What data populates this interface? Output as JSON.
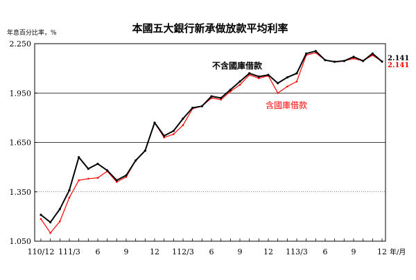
{
  "chart_data": {
    "type": "line",
    "title": "本國五大銀行新承做放款平均利率",
    "ylabel": "年息百分比率，%",
    "xlabel": "年/月",
    "ylim": [
      1.05,
      2.25
    ],
    "yticks": [
      "1.050",
      "1.350",
      "1.650",
      "1.950",
      "2.250"
    ],
    "ytick_values": [
      1.05,
      1.35,
      1.65,
      1.95,
      2.25
    ],
    "grid": "horizontal",
    "gridline_styles": {
      "1.350": "dotted",
      "1.650": "solid",
      "1.950": "solid"
    },
    "x": [
      "110/12",
      "111/1",
      "111/2",
      "111/3",
      "111/4",
      "111/5",
      "111/6",
      "111/7",
      "111/8",
      "111/9",
      "111/10",
      "111/11",
      "111/12",
      "112/1",
      "112/2",
      "112/3",
      "112/4",
      "112/5",
      "112/6",
      "112/7",
      "112/8",
      "112/9",
      "112/10",
      "112/11",
      "112/12",
      "113/1",
      "113/2",
      "113/3",
      "113/4",
      "113/5",
      "113/6",
      "113/7",
      "113/8",
      "113/9",
      "113/10",
      "113/11",
      "113/12"
    ],
    "xtick_labels": [
      {
        "index": 0,
        "label": "110/12"
      },
      {
        "index": 3,
        "label": "111/3"
      },
      {
        "index": 6,
        "label": "6"
      },
      {
        "index": 9,
        "label": "9"
      },
      {
        "index": 12,
        "label": "12"
      },
      {
        "index": 15,
        "label": "112/3"
      },
      {
        "index": 18,
        "label": "6"
      },
      {
        "index": 21,
        "label": "9"
      },
      {
        "index": 24,
        "label": "12"
      },
      {
        "index": 27,
        "label": "113/3"
      },
      {
        "index": 30,
        "label": "6"
      },
      {
        "index": 33,
        "label": "9"
      },
      {
        "index": 36,
        "label": "12"
      }
    ],
    "series": [
      {
        "name": "不含國庫借款",
        "color": "#000000",
        "values": [
          1.21,
          1.165,
          1.245,
          1.36,
          1.56,
          1.49,
          1.52,
          1.48,
          1.42,
          1.45,
          1.54,
          1.6,
          1.77,
          1.69,
          1.72,
          1.795,
          1.86,
          1.87,
          1.93,
          1.92,
          1.97,
          2.02,
          2.07,
          2.05,
          2.06,
          2.01,
          2.045,
          2.07,
          2.19,
          2.205,
          2.15,
          2.14,
          2.145,
          2.17,
          2.145,
          2.19,
          2.141
        ]
      },
      {
        "name": "含國庫借款",
        "color": "#ff0000",
        "values": [
          1.185,
          1.1,
          1.17,
          1.315,
          1.42,
          1.43,
          1.435,
          1.475,
          1.41,
          1.44,
          1.54,
          1.6,
          1.77,
          1.68,
          1.7,
          1.755,
          1.855,
          1.87,
          1.92,
          1.91,
          1.96,
          2.0,
          2.06,
          2.04,
          2.055,
          1.95,
          1.99,
          2.02,
          2.18,
          2.195,
          2.15,
          2.14,
          2.145,
          2.16,
          2.145,
          2.18,
          2.141
        ]
      }
    ],
    "end_labels": {
      "black": "2.141",
      "red": "2.141"
    },
    "annotations": {
      "black_series_label": "不含國庫借款",
      "red_series_label": "含國庫借款"
    }
  }
}
